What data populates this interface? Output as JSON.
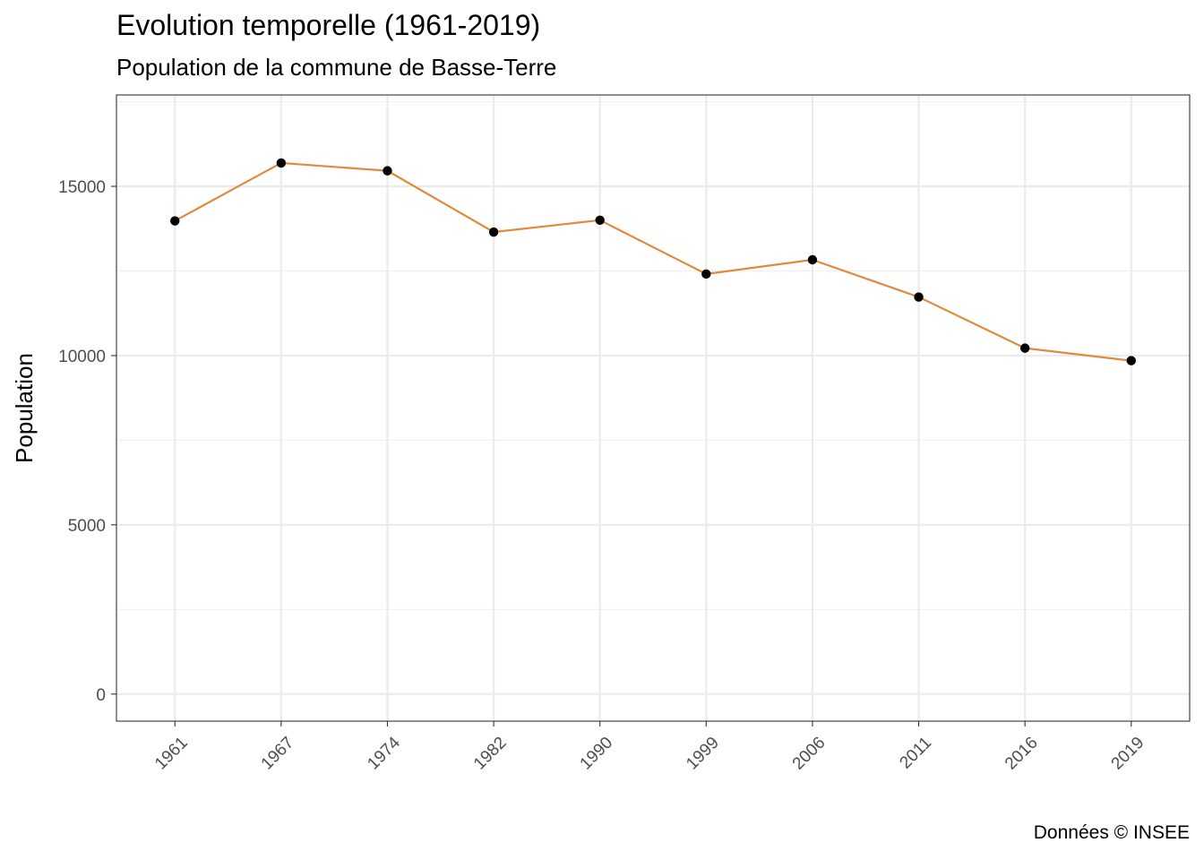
{
  "chart_data": {
    "type": "line",
    "title": "Evolution temporelle (1961-2019)",
    "subtitle": "Population de la commune de Basse-Terre",
    "caption": "Données © INSEE",
    "xlabel": "",
    "ylabel": "Population",
    "categories": [
      "1961",
      "1967",
      "1974",
      "1982",
      "1990",
      "1999",
      "2006",
      "2011",
      "2016",
      "2019"
    ],
    "series": [
      {
        "values": [
          13980,
          15690,
          15460,
          13650,
          14000,
          12410,
          12830,
          11730,
          10220,
          9850
        ],
        "line_color": "#E08A3C",
        "point_color": "#000000"
      }
    ],
    "ylim": [
      -800,
      17700
    ],
    "yticks": [
      0,
      5000,
      10000,
      15000
    ],
    "yminor": [
      2500,
      7500,
      12500,
      17500
    ],
    "grid": true,
    "legend": "none"
  }
}
